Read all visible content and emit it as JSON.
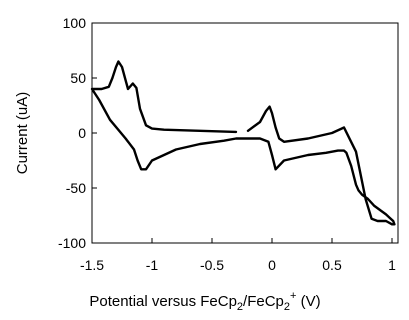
{
  "chart_data": {
    "type": "line",
    "title": "",
    "xlabel": {
      "text": "Potential versus FeCp",
      "sub1": "2",
      "mid": "/FeCp",
      "sub2": "2",
      "sup": "+",
      "end": " (V)"
    },
    "ylabel": "Current (uA)",
    "xlim": [
      -1.5,
      1.05
    ],
    "ylim": [
      -100,
      100
    ],
    "xticks": [
      -1.5,
      -1,
      -0.5,
      0,
      0.5,
      1
    ],
    "xtick_labels": [
      "-1.5",
      "-1",
      "-0.5",
      "0",
      "0.5",
      "1"
    ],
    "yticks": [
      -100,
      -50,
      0,
      50,
      100
    ],
    "ytick_labels": [
      "-100",
      "-50",
      "0",
      "50",
      "100"
    ],
    "grid": false,
    "legend": "none",
    "line_color": "#000000",
    "series": [
      {
        "x": [
          -0.3,
          -0.6,
          -0.9,
          -1.0,
          -1.05,
          -1.1,
          -1.13,
          -1.16,
          -1.2,
          -1.25,
          -1.28,
          -1.3,
          -1.33,
          -1.36,
          -1.42,
          -1.5,
          -1.44,
          -1.35,
          -1.22,
          -1.15,
          -1.12,
          -1.09,
          -1.05,
          -1.0,
          -0.8,
          -0.6,
          -0.4,
          -0.3,
          -0.1,
          -0.03,
          0.0,
          0.03,
          0.1,
          0.3,
          0.45,
          0.55,
          0.6,
          0.62,
          0.66,
          0.7,
          0.72,
          0.75,
          0.8,
          0.85,
          0.9,
          0.95,
          0.98,
          1.01,
          1.02,
          1.0,
          0.95,
          0.88,
          0.83,
          0.78,
          0.7,
          0.6,
          0.5,
          0.3,
          0.1,
          0.06,
          0.03,
          0.0,
          -0.02,
          -0.05,
          -0.1,
          -0.2
        ],
        "y": [
          1,
          2,
          3,
          4,
          7,
          22,
          41,
          45,
          40,
          60,
          65,
          60,
          50,
          42,
          40,
          40,
          30,
          12,
          -5,
          -15,
          -25,
          -33,
          -33,
          -25,
          -15,
          -10,
          -7,
          -5,
          -5,
          -8,
          -20,
          -33,
          -25,
          -20,
          -18,
          -16,
          -16,
          -18,
          -30,
          -47,
          -52,
          -56,
          -60,
          -66,
          -70,
          -74,
          -77,
          -80,
          -83,
          -83,
          -80,
          -80,
          -78,
          -60,
          -17,
          5,
          0,
          -5,
          -8,
          -5,
          5,
          18,
          24,
          20,
          10,
          2
        ]
      }
    ]
  }
}
